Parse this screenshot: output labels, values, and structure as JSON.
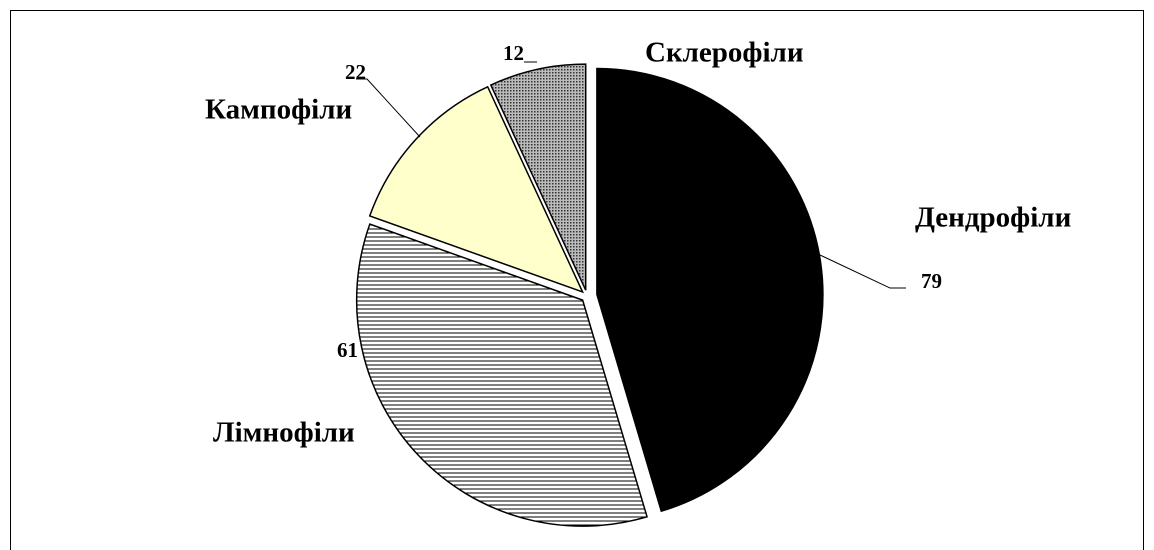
{
  "chart_data": {
    "type": "pie",
    "categories": [
      "Дендрофіли",
      "Лімнофіли",
      "Кампофіли",
      "Склерофіли"
    ],
    "values": [
      79,
      61,
      22,
      12
    ],
    "colors": [
      "#000000",
      "url(#hlines)",
      "#ffffcc",
      "url(#dots)"
    ]
  }
}
